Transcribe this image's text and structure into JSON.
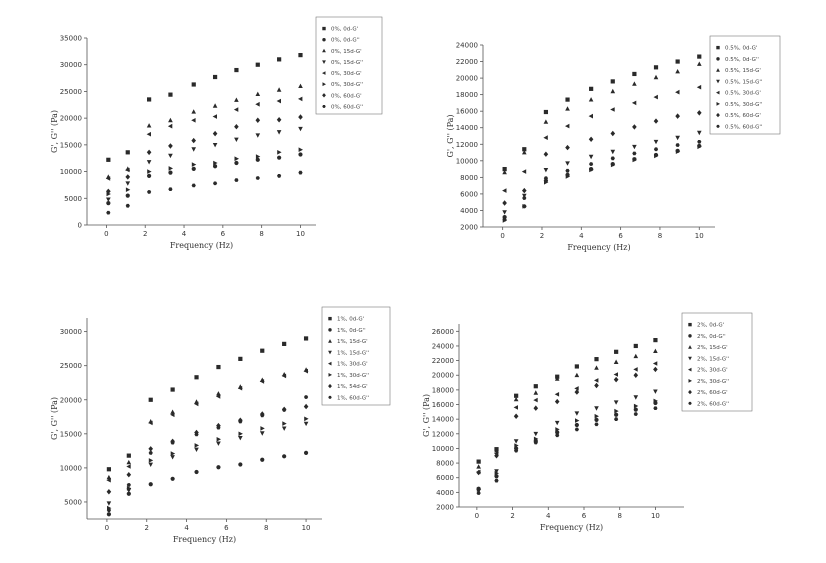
{
  "chart_data": [
    {
      "type": "scatter",
      "xlabel": "Frequency (Hz)",
      "ylabel": "G', G'' (Pa)",
      "xlim": [
        -1,
        10.8
      ],
      "ylim": [
        0,
        35000
      ],
      "xticks": [
        "0",
        "2",
        "4",
        "6",
        "8",
        "10"
      ],
      "yticks": [
        "0",
        "5000",
        "10000",
        "15000",
        "20000",
        "25000",
        "30000",
        "35000"
      ],
      "legend_position": "top-right",
      "x": [
        0.1,
        1.1,
        2.2,
        3.3,
        4.5,
        5.6,
        6.7,
        7.8,
        8.9,
        10.0
      ],
      "series": [
        {
          "name": "0%, 0d-G'",
          "marker": "square",
          "values": [
            12200,
            13600,
            23500,
            24400,
            26300,
            27700,
            29000,
            30000,
            31000,
            31800
          ]
        },
        {
          "name": "0%, 0d-G''",
          "marker": "circle",
          "values": [
            4100,
            5500,
            9200,
            9800,
            10500,
            11000,
            11600,
            12200,
            12600,
            13200
          ]
        },
        {
          "name": "0%, 15d-G'",
          "marker": "triangle-up",
          "values": [
            9000,
            10500,
            18600,
            19600,
            21200,
            22300,
            23400,
            24500,
            25300,
            26000
          ]
        },
        {
          "name": "0%, 15d-G''",
          "marker": "triangle-down",
          "values": [
            4800,
            7800,
            11800,
            13000,
            14200,
            15000,
            16000,
            16800,
            17400,
            18000
          ]
        },
        {
          "name": "0%, 30d-G'",
          "marker": "triangle-left",
          "values": [
            8700,
            10300,
            17000,
            18500,
            19600,
            20300,
            21600,
            22600,
            23200,
            23600
          ]
        },
        {
          "name": "0%, 30d-G''",
          "marker": "triangle-right",
          "values": [
            5800,
            6600,
            10000,
            10600,
            11300,
            11600,
            12400,
            12800,
            13600,
            14100
          ]
        },
        {
          "name": "0%, 60d-G'",
          "marker": "diamond",
          "values": [
            6300,
            9000,
            13600,
            14800,
            15800,
            17100,
            18400,
            19600,
            19700,
            20200
          ]
        },
        {
          "name": "0%, 60d-G''",
          "marker": "hexagon",
          "values": [
            2300,
            3600,
            6200,
            6700,
            7400,
            7800,
            8400,
            8800,
            9200,
            9800
          ]
        }
      ]
    },
    {
      "type": "scatter",
      "xlabel": "Frequency (Hz)",
      "ylabel": "G', G'' (Pa)",
      "xlim": [
        -1,
        10.8
      ],
      "ylim": [
        2000,
        24000
      ],
      "xticks": [
        "0",
        "2",
        "4",
        "6",
        "8",
        "10"
      ],
      "yticks": [
        "2000",
        "4000",
        "6000",
        "8000",
        "10000",
        "12000",
        "14000",
        "16000",
        "18000",
        "20000",
        "22000",
        "24000"
      ],
      "legend_position": "top-right",
      "x": [
        0.1,
        1.1,
        2.2,
        3.3,
        4.5,
        5.6,
        6.7,
        7.8,
        8.9,
        10.0
      ],
      "series": [
        {
          "name": "0.5%, 0d-G'",
          "marker": "square",
          "values": [
            9000,
            11400,
            15900,
            17400,
            18700,
            19600,
            20500,
            21300,
            22000,
            22600
          ]
        },
        {
          "name": "0.5%, 0d-G''",
          "marker": "circle",
          "values": [
            3200,
            4500,
            7600,
            8300,
            9000,
            9600,
            10200,
            10700,
            11200,
            11800
          ]
        },
        {
          "name": "0.5%, 15d-G'",
          "marker": "triangle-up",
          "values": [
            8600,
            11000,
            14700,
            16300,
            17400,
            18400,
            19300,
            20100,
            20800,
            21700
          ]
        },
        {
          "name": "0.5%, 15d-G''",
          "marker": "triangle-down",
          "values": [
            3800,
            5800,
            8900,
            9700,
            10500,
            11100,
            11700,
            12300,
            12800,
            13400
          ]
        },
        {
          "name": "0.5%, 30d-G'",
          "marker": "triangle-left",
          "values": [
            6400,
            8700,
            12800,
            14200,
            15400,
            16200,
            17000,
            17700,
            18300,
            18900
          ]
        },
        {
          "name": "0.5%, 30d-G''",
          "marker": "triangle-right",
          "values": [
            2800,
            4500,
            7400,
            8100,
            8900,
            9500,
            10100,
            10600,
            11100,
            11700
          ]
        },
        {
          "name": "0.5%, 60d-G'",
          "marker": "diamond",
          "values": [
            4900,
            6400,
            10800,
            11600,
            12600,
            13300,
            14100,
            14800,
            15400,
            15800
          ]
        },
        {
          "name": "0.5%, 60d-G''",
          "marker": "hexagon",
          "values": [
            2900,
            5500,
            7900,
            8800,
            9600,
            10300,
            10900,
            11400,
            11900,
            12300
          ]
        }
      ]
    },
    {
      "type": "scatter",
      "xlabel": "Frequency (Hz)",
      "ylabel": "G', G'' (Pa)",
      "xlim": [
        -1,
        10.8
      ],
      "ylim": [
        2500,
        32000
      ],
      "xticks": [
        "0",
        "2",
        "4",
        "6",
        "8",
        "10"
      ],
      "yticks": [
        "5000",
        "10000",
        "15000",
        "20000",
        "25000",
        "30000"
      ],
      "legend_position": "top-right",
      "x": [
        0.1,
        1.1,
        2.2,
        3.3,
        4.5,
        5.6,
        6.7,
        7.8,
        8.9,
        10.0
      ],
      "series": [
        {
          "name": "1%, 0d-G'",
          "marker": "square",
          "values": [
            9800,
            11800,
            20000,
            21500,
            23300,
            24800,
            26000,
            27200,
            28200,
            29000
          ]
        },
        {
          "name": "1%, 0d-G''",
          "marker": "circle",
          "values": [
            3200,
            6200,
            7600,
            8400,
            9400,
            10100,
            10500,
            11200,
            11700,
            12200
          ]
        },
        {
          "name": "1%, 15d-G'",
          "marker": "triangle-up",
          "values": [
            8600,
            10800,
            16800,
            18200,
            19700,
            20900,
            21900,
            22900,
            23700,
            24400
          ]
        },
        {
          "name": "1%, 15d-G''",
          "marker": "triangle-down",
          "values": [
            4800,
            6700,
            10500,
            11600,
            12700,
            13600,
            14400,
            15100,
            15800,
            16500
          ]
        },
        {
          "name": "1%, 30d-G'",
          "marker": "triangle-left",
          "values": [
            8200,
            10200,
            16600,
            17800,
            19400,
            20500,
            21700,
            22700,
            23500,
            24200
          ]
        },
        {
          "name": "1%, 30d-G''",
          "marker": "triangle-right",
          "values": [
            4100,
            7000,
            11100,
            12100,
            13300,
            14200,
            15000,
            15800,
            16500,
            17200
          ]
        },
        {
          "name": "1%, 54d-G'",
          "marker": "diamond",
          "values": [
            6500,
            9000,
            12800,
            13900,
            15200,
            16200,
            17000,
            17900,
            18600,
            19000
          ]
        },
        {
          "name": "1%, 60d-G''",
          "marker": "hexagon",
          "values": [
            3800,
            7500,
            12200,
            13700,
            14900,
            15900,
            16800,
            17700,
            18500,
            20400
          ]
        }
      ]
    },
    {
      "type": "scatter",
      "xlabel": "Frequency (Hz)",
      "ylabel": "G', G'' (Pa)",
      "xlim": [
        -1,
        11.6
      ],
      "ylim": [
        2000,
        27000
      ],
      "xticks": [
        "0",
        "2",
        "4",
        "6",
        "8",
        "10"
      ],
      "yticks": [
        "2000",
        "4000",
        "6000",
        "8000",
        "10000",
        "12000",
        "14000",
        "16000",
        "18000",
        "20000",
        "22000",
        "24000",
        "26000"
      ],
      "legend_position": "top-right",
      "x": [
        0.1,
        1.1,
        2.2,
        3.3,
        4.5,
        5.6,
        6.7,
        7.8,
        8.9,
        10.0
      ],
      "series": [
        {
          "name": "2%, 0d-G'",
          "marker": "square",
          "values": [
            8200,
            9900,
            17200,
            18500,
            19800,
            21200,
            22200,
            23200,
            24000,
            24800
          ]
        },
        {
          "name": "2%, 0d-G''",
          "marker": "circle",
          "values": [
            4500,
            6200,
            10000,
            11000,
            12200,
            13200,
            13900,
            14600,
            15300,
            16200
          ]
        },
        {
          "name": "2%, 15d-G'",
          "marker": "triangle-up",
          "values": [
            7500,
            9700,
            16700,
            17600,
            19500,
            20000,
            21000,
            21800,
            22600,
            23300
          ]
        },
        {
          "name": "2%, 15d-G''",
          "marker": "triangle-down",
          "values": [
            4200,
            6900,
            11000,
            12000,
            13500,
            14800,
            15500,
            16300,
            17000,
            17800
          ]
        },
        {
          "name": "2%, 30d-G'",
          "marker": "triangle-left",
          "values": [
            6800,
            9300,
            15600,
            16600,
            17400,
            18200,
            19300,
            20100,
            20800,
            21600
          ]
        },
        {
          "name": "2%, 30d-G''",
          "marker": "triangle-right",
          "values": [
            4400,
            6600,
            10400,
            11300,
            12600,
            13800,
            14400,
            15100,
            15800,
            16500
          ]
        },
        {
          "name": "2%, 60d-G'",
          "marker": "diamond",
          "values": [
            6700,
            9000,
            14400,
            15500,
            16400,
            17700,
            18600,
            19400,
            20000,
            20800
          ]
        },
        {
          "name": "2%, 60d-G''",
          "marker": "hexagon",
          "values": [
            3900,
            5600,
            9700,
            10800,
            11800,
            12600,
            13300,
            14000,
            14700,
            15500
          ]
        }
      ]
    }
  ]
}
